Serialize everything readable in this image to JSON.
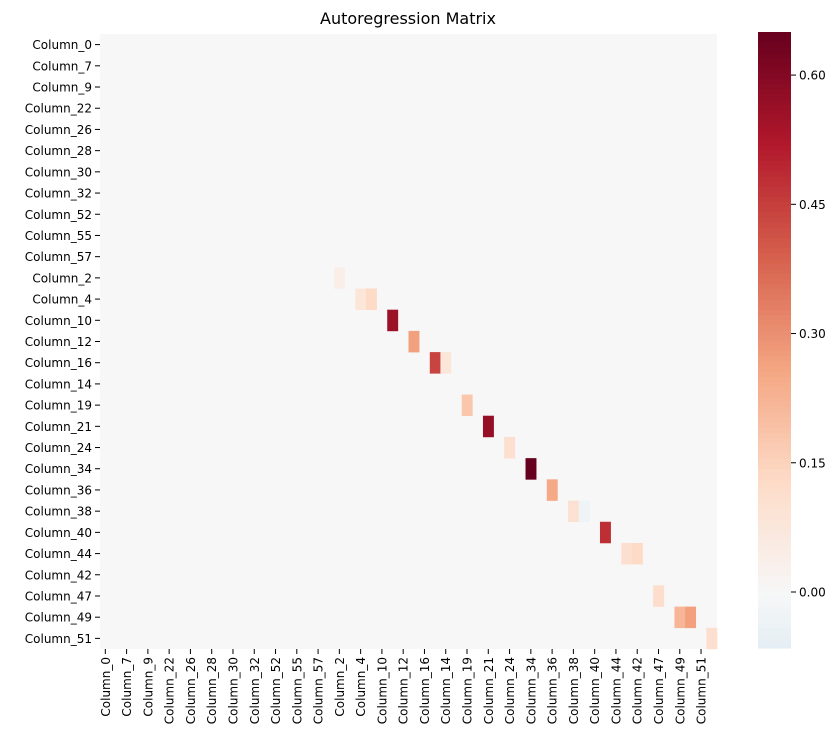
{
  "chart_data": {
    "type": "heatmap",
    "title": "Autoregression Matrix",
    "xlabel": "",
    "ylabel": "",
    "rows": [
      "Column_0",
      "Column_7",
      "Column_9",
      "Column_22",
      "Column_26",
      "Column_28",
      "Column_30",
      "Column_32",
      "Column_52",
      "Column_55",
      "Column_57",
      "Column_2",
      "Column_4",
      "Column_10",
      "Column_12",
      "Column_16",
      "Column_14",
      "Column_19",
      "Column_21",
      "Column_24",
      "Column_34",
      "Column_36",
      "Column_38",
      "Column_40",
      "Column_44",
      "Column_42",
      "Column_47",
      "Column_49",
      "Column_51"
    ],
    "x_tick_labels": [
      "Column_0",
      "Column_7",
      "Column_9",
      "Column_22",
      "Column_26",
      "Column_28",
      "Column_30",
      "Column_32",
      "Column_52",
      "Column_55",
      "Column_57",
      "Column_2",
      "Column_4",
      "Column_10",
      "Column_12",
      "Column_16",
      "Column_14",
      "Column_19",
      "Column_21",
      "Column_24",
      "Column_34",
      "Column_36",
      "Column_38",
      "Column_40",
      "Column_44",
      "Column_42",
      "Column_47",
      "Column_49",
      "Column_51"
    ],
    "n_columns": 58,
    "default_value": 0.0,
    "nonzero_cells": [
      {
        "row": "Column_2",
        "col": 22,
        "value": 0.04
      },
      {
        "row": "Column_4",
        "col": 24,
        "value": 0.08
      },
      {
        "row": "Column_4",
        "col": 25,
        "value": 0.13
      },
      {
        "row": "Column_10",
        "col": 27,
        "value": 0.56
      },
      {
        "row": "Column_12",
        "col": 29,
        "value": 0.27
      },
      {
        "row": "Column_16",
        "col": 31,
        "value": 0.44
      },
      {
        "row": "Column_16",
        "col": 32,
        "value": 0.08
      },
      {
        "row": "Column_19",
        "col": 34,
        "value": 0.18
      },
      {
        "row": "Column_21",
        "col": 36,
        "value": 0.57
      },
      {
        "row": "Column_24",
        "col": 38,
        "value": 0.11
      },
      {
        "row": "Column_34",
        "col": 40,
        "value": 0.65
      },
      {
        "row": "Column_36",
        "col": 42,
        "value": 0.25
      },
      {
        "row": "Column_38",
        "col": 44,
        "value": 0.1
      },
      {
        "row": "Column_38",
        "col": 45,
        "value": -0.03
      },
      {
        "row": "Column_40",
        "col": 47,
        "value": 0.48
      },
      {
        "row": "Column_44",
        "col": 49,
        "value": 0.11
      },
      {
        "row": "Column_44",
        "col": 50,
        "value": 0.13
      },
      {
        "row": "Column_47",
        "col": 52,
        "value": 0.12
      },
      {
        "row": "Column_49",
        "col": 54,
        "value": 0.22
      },
      {
        "row": "Column_49",
        "col": 55,
        "value": 0.27
      },
      {
        "row": "Column_51",
        "col": 57,
        "value": 0.11
      }
    ],
    "colorbar": {
      "colormap": "RdBu_r",
      "vmin": -0.65,
      "vmax": 0.65,
      "range_shown": [
        -0.065,
        0.65
      ],
      "ticks": [
        0.0,
        0.15,
        0.3,
        0.45,
        0.6
      ],
      "tick_labels": [
        "0.00",
        "0.15",
        "0.30",
        "0.45",
        "0.60"
      ]
    },
    "grid": false,
    "legend": "colorbar-right"
  }
}
